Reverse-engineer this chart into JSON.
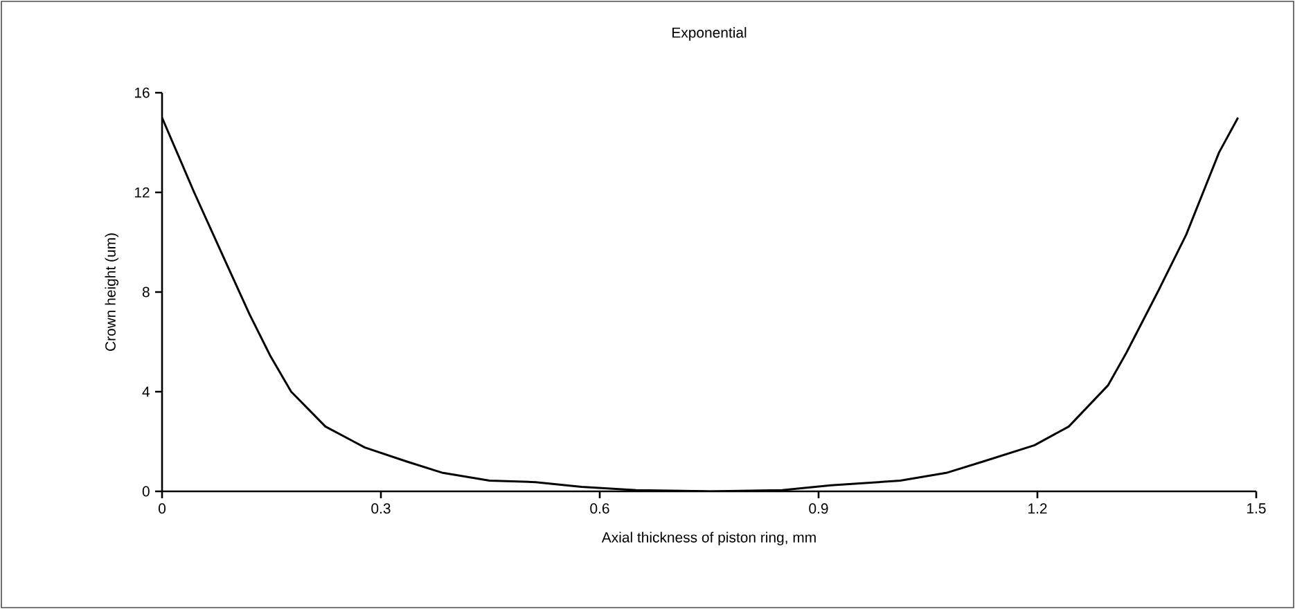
{
  "chart_data": {
    "type": "line",
    "title": "Exponential",
    "xlabel": "Axial thickness of piston ring, mm",
    "ylabel": "Crown height (um)",
    "x": [
      0,
      0.044,
      0.085,
      0.12,
      0.148,
      0.177,
      0.224,
      0.278,
      0.335,
      0.385,
      0.449,
      0.512,
      0.575,
      0.65,
      0.75,
      0.85,
      0.917,
      1.012,
      1.075,
      1.126,
      1.196,
      1.243,
      1.297,
      1.322,
      1.366,
      1.404,
      1.449,
      1.475
    ],
    "series": [
      {
        "color": "#000000",
        "values": [
          15,
          12.0,
          9.35,
          7.1,
          5.46,
          4.0,
          2.6,
          1.76,
          1.2,
          0.74,
          0.43,
          0.37,
          0.18,
          0.05,
          0,
          0.05,
          0.24,
          0.43,
          0.74,
          1.2,
          1.85,
          2.6,
          4.26,
          5.56,
          8.06,
          10.3,
          13.6,
          15
        ]
      }
    ],
    "xlim": [
      0,
      1.5
    ],
    "ylim": [
      0,
      16
    ],
    "xticks": [
      0,
      0.3,
      0.6,
      0.9,
      1.2,
      1.5
    ],
    "yticks": [
      0,
      4,
      8,
      12,
      16
    ],
    "grid": false,
    "marker": "none",
    "line_style": "solid"
  }
}
